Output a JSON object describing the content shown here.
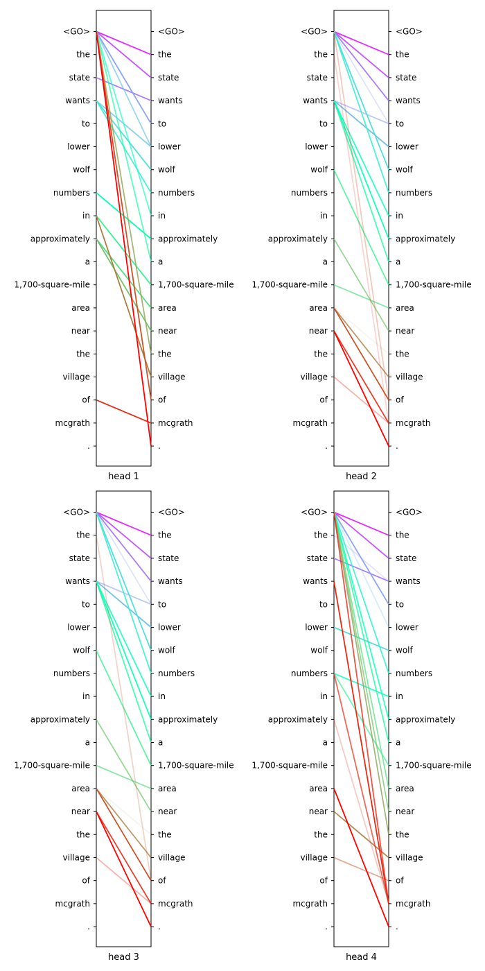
{
  "chart_data": [
    {
      "type": "attention",
      "title": "",
      "xlabel": "head 1",
      "left_tokens": [
        "<GO>",
        "the",
        "state",
        "wants",
        "to",
        "lower",
        "wolf",
        "numbers",
        "in",
        "approximately",
        "a",
        "1,700-square-mile",
        "area",
        "near",
        "the",
        "village",
        "of",
        "mcgrath",
        "."
      ],
      "right_tokens": [
        "<GO>",
        "the",
        "state",
        "wants",
        "to",
        "lower",
        "wolf",
        "numbers",
        "in",
        "approximately",
        "a",
        "1,700-square-mile",
        "area",
        "near",
        "the",
        "village",
        "of",
        "mcgrath",
        "."
      ],
      "links": [
        {
          "from": 0,
          "to": 1,
          "weight": 1.0
        },
        {
          "from": 0,
          "to": 2,
          "weight": 1.0
        },
        {
          "from": 2,
          "to": 3,
          "weight": 1.0
        },
        {
          "from": 0,
          "to": 4,
          "weight": 1.0
        },
        {
          "from": 0,
          "to": 5,
          "weight": 0.7
        },
        {
          "from": 3,
          "to": 5,
          "weight": 0.8
        },
        {
          "from": 3,
          "to": 6,
          "weight": 1.0
        },
        {
          "from": 3,
          "to": 7,
          "weight": 0.9
        },
        {
          "from": 0,
          "to": 8,
          "weight": 0.7
        },
        {
          "from": 7,
          "to": 9,
          "weight": 1.0
        },
        {
          "from": 0,
          "to": 10,
          "weight": 0.7
        },
        {
          "from": 8,
          "to": 11,
          "weight": 1.0
        },
        {
          "from": 9,
          "to": 12,
          "weight": 1.0
        },
        {
          "from": 9,
          "to": 13,
          "weight": 1.0
        },
        {
          "from": 0,
          "to": 14,
          "weight": 0.8
        },
        {
          "from": 8,
          "to": 15,
          "weight": 1.0
        },
        {
          "from": 0,
          "to": 16,
          "weight": 1.0
        },
        {
          "from": 16,
          "to": 17,
          "weight": 1.0
        },
        {
          "from": 0,
          "to": 18,
          "weight": 1.0
        }
      ]
    },
    {
      "type": "attention",
      "title": "",
      "xlabel": "head 2",
      "left_tokens": [
        "<GO>",
        "the",
        "state",
        "wants",
        "to",
        "lower",
        "wolf",
        "numbers",
        "in",
        "approximately",
        "a",
        "1,700-square-mile",
        "area",
        "near",
        "the",
        "village",
        "of",
        "mcgrath",
        "."
      ],
      "right_tokens": [
        "<GO>",
        "the",
        "state",
        "wants",
        "to",
        "lower",
        "wolf",
        "numbers",
        "in",
        "approximately",
        "a",
        "1,700-square-mile",
        "area",
        "near",
        "the",
        "village",
        "of",
        "mcgrath",
        "."
      ],
      "links": [
        {
          "from": 0,
          "to": 1,
          "weight": 1.0
        },
        {
          "from": 0,
          "to": 2,
          "weight": 1.0
        },
        {
          "from": 0,
          "to": 3,
          "weight": 1.0
        },
        {
          "from": 3,
          "to": 4,
          "weight": 0.6
        },
        {
          "from": 0,
          "to": 4,
          "weight": 0.3
        },
        {
          "from": 3,
          "to": 5,
          "weight": 1.0
        },
        {
          "from": 0,
          "to": 6,
          "weight": 1.0
        },
        {
          "from": 0,
          "to": 7,
          "weight": 0.9
        },
        {
          "from": 3,
          "to": 8,
          "weight": 0.9
        },
        {
          "from": 3,
          "to": 9,
          "weight": 0.9
        },
        {
          "from": 3,
          "to": 10,
          "weight": 0.8
        },
        {
          "from": 6,
          "to": 11,
          "weight": 0.8
        },
        {
          "from": 11,
          "to": 12,
          "weight": 0.7
        },
        {
          "from": 9,
          "to": 13,
          "weight": 0.7
        },
        {
          "from": 12,
          "to": 14,
          "weight": 0.1
        },
        {
          "from": 12,
          "to": 15,
          "weight": 0.8
        },
        {
          "from": 12,
          "to": 16,
          "weight": 1.0
        },
        {
          "from": 13,
          "to": 17,
          "weight": 0.9
        },
        {
          "from": 13,
          "to": 18,
          "weight": 1.0
        },
        {
          "from": 15,
          "to": 17,
          "weight": 0.35
        },
        {
          "from": 0,
          "to": 16,
          "weight": 0.3
        },
        {
          "from": 1,
          "to": 17,
          "weight": 0.2
        }
      ]
    },
    {
      "type": "attention",
      "title": "",
      "xlabel": "head 3",
      "left_tokens": [
        "<GO>",
        "the",
        "state",
        "wants",
        "to",
        "lower",
        "wolf",
        "numbers",
        "in",
        "approximately",
        "a",
        "1,700-square-mile",
        "area",
        "near",
        "the",
        "village",
        "of",
        "mcgrath",
        "."
      ],
      "right_tokens": [
        "<GO>",
        "the",
        "state",
        "wants",
        "to",
        "lower",
        "wolf",
        "numbers",
        "in",
        "approximately",
        "a",
        "1,700-square-mile",
        "area",
        "near",
        "the",
        "village",
        "of",
        "mcgrath",
        "."
      ],
      "links": [
        {
          "from": 0,
          "to": 1,
          "weight": 1.0
        },
        {
          "from": 0,
          "to": 2,
          "weight": 1.0
        },
        {
          "from": 0,
          "to": 3,
          "weight": 1.0
        },
        {
          "from": 3,
          "to": 4,
          "weight": 0.6
        },
        {
          "from": 0,
          "to": 4,
          "weight": 0.3
        },
        {
          "from": 3,
          "to": 5,
          "weight": 1.0
        },
        {
          "from": 0,
          "to": 6,
          "weight": 1.0
        },
        {
          "from": 0,
          "to": 7,
          "weight": 0.9
        },
        {
          "from": 3,
          "to": 8,
          "weight": 0.9
        },
        {
          "from": 3,
          "to": 9,
          "weight": 0.9
        },
        {
          "from": 3,
          "to": 10,
          "weight": 0.8
        },
        {
          "from": 6,
          "to": 11,
          "weight": 0.8
        },
        {
          "from": 11,
          "to": 12,
          "weight": 0.7
        },
        {
          "from": 9,
          "to": 13,
          "weight": 0.7
        },
        {
          "from": 12,
          "to": 14,
          "weight": 0.1
        },
        {
          "from": 12,
          "to": 15,
          "weight": 0.8
        },
        {
          "from": 12,
          "to": 16,
          "weight": 1.0
        },
        {
          "from": 15,
          "to": 17,
          "weight": 0.35
        },
        {
          "from": 13,
          "to": 17,
          "weight": 0.9
        },
        {
          "from": 13,
          "to": 18,
          "weight": 1.0
        },
        {
          "from": 1,
          "to": 16,
          "weight": 0.25
        }
      ]
    },
    {
      "type": "attention",
      "title": "",
      "xlabel": "head 4",
      "left_tokens": [
        "<GO>",
        "the",
        "state",
        "wants",
        "to",
        "lower",
        "wolf",
        "numbers",
        "in",
        "approximately",
        "a",
        "1,700-square-mile",
        "area",
        "near",
        "the",
        "village",
        "of",
        "mcgrath",
        "."
      ],
      "right_tokens": [
        "<GO>",
        "the",
        "state",
        "wants",
        "to",
        "lower",
        "wolf",
        "numbers",
        "in",
        "approximately",
        "a",
        "1,700-square-mile",
        "area",
        "near",
        "the",
        "village",
        "of",
        "mcgrath",
        "."
      ],
      "links": [
        {
          "from": 0,
          "to": 1,
          "weight": 1.0
        },
        {
          "from": 0,
          "to": 2,
          "weight": 1.0
        },
        {
          "from": 1,
          "to": 3,
          "weight": 0.25
        },
        {
          "from": 2,
          "to": 3,
          "weight": 1.0
        },
        {
          "from": 0,
          "to": 4,
          "weight": 1.0
        },
        {
          "from": 0,
          "to": 5,
          "weight": 0.3
        },
        {
          "from": 5,
          "to": 6,
          "weight": 1.0
        },
        {
          "from": 0,
          "to": 7,
          "weight": 0.9
        },
        {
          "from": 7,
          "to": 8,
          "weight": 0.9
        },
        {
          "from": 0,
          "to": 9,
          "weight": 0.8
        },
        {
          "from": 0,
          "to": 10,
          "weight": 0.8
        },
        {
          "from": 7,
          "to": 11,
          "weight": 0.7
        },
        {
          "from": 0,
          "to": 12,
          "weight": 0.7
        },
        {
          "from": 0,
          "to": 13,
          "weight": 0.7
        },
        {
          "from": 0,
          "to": 14,
          "weight": 0.8
        },
        {
          "from": 13,
          "to": 15,
          "weight": 0.9
        },
        {
          "from": 15,
          "to": 16,
          "weight": 0.5
        },
        {
          "from": 3,
          "to": 17,
          "weight": 1.0
        },
        {
          "from": 7,
          "to": 17,
          "weight": 0.7
        },
        {
          "from": 0,
          "to": 17,
          "weight": 0.8
        },
        {
          "from": 12,
          "to": 18,
          "weight": 1.0
        },
        {
          "from": 9,
          "to": 17,
          "weight": 0.25
        }
      ]
    }
  ]
}
